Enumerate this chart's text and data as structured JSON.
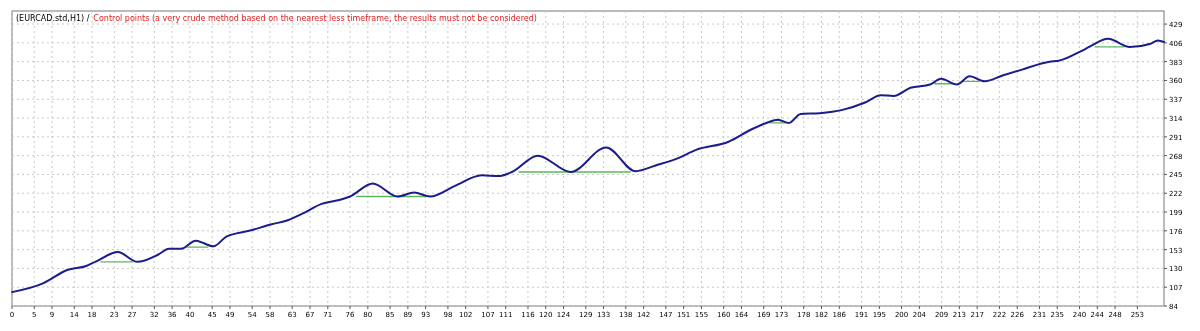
{
  "chart_data": {
    "type": "line",
    "title": "(EURCAD.std,H1) /",
    "subtitle": "Control points (a very crude method based on the nearest less timeframe, the results must not be considered)",
    "xlim": [
      0,
      259
    ],
    "xticks": [
      0,
      5,
      9,
      14,
      18,
      23,
      27,
      32,
      36,
      40,
      45,
      49,
      54,
      58,
      63,
      67,
      71,
      76,
      80,
      85,
      89,
      93,
      98,
      102,
      107,
      111,
      116,
      120,
      124,
      129,
      133,
      138,
      142,
      147,
      151,
      155,
      160,
      164,
      169,
      173,
      178,
      182,
      186,
      191,
      195,
      200,
      204,
      209,
      213,
      217,
      222,
      226,
      231,
      235,
      240,
      244,
      248,
      253
    ],
    "ylim": [
      84,
      445
    ],
    "yticks": [
      84,
      107,
      130,
      153,
      176,
      199,
      222,
      245,
      268,
      291,
      314,
      337,
      360,
      383,
      406,
      429
    ],
    "grid": true,
    "line_style": "solid",
    "marker": "none",
    "series": [
      {
        "color": "#5cb85c",
        "x": [
          20,
          27,
          27.5,
          39.5,
          44,
          44.5,
          77.5,
          93,
          93.5,
          114,
          139,
          139.5,
          170.5,
          174,
          174.5,
          207.5,
          211.5,
          212,
          213.5,
          217.5,
          218,
          243.5,
          250
        ],
        "values": [
          138,
          138,
          null,
          156,
          156,
          null,
          218,
          218,
          null,
          248,
          248,
          null,
          308,
          308,
          null,
          356,
          356,
          null,
          359,
          359,
          null,
          401,
          401
        ]
      },
      {
        "color": "#1c1c8c",
        "x": [
          0,
          7.1,
          12.4,
          16.7,
          18.7,
          23.8,
          28.2,
          32.9,
          35.3,
          38,
          41.3,
          45.3,
          48.2,
          53.3,
          58.4,
          62,
          65.3,
          69.6,
          73.8,
          76,
          81.1,
          86.7,
          90.4,
          94,
          99.6,
          105.6,
          109.3,
          112.4,
          118.2,
          125.6,
          133.6,
          140.2,
          144.7,
          149.8,
          153.8,
          161.1,
          166.2,
          169.6,
          172.2,
          174.7,
          177.3,
          181.6,
          186.7,
          191.8,
          195.3,
          198.2,
          202,
          206.4,
          208.9,
          212.4,
          215.3,
          218.7,
          222.7,
          226.9,
          233.3,
          235.3,
          240.4,
          242.2,
          246.4,
          251.3,
          256,
          257.6,
          259
        ],
        "values": [
          101,
          112,
          128,
          133,
          138,
          150,
          138,
          147,
          154,
          154,
          164,
          157,
          169,
          176,
          184,
          189,
          197,
          209,
          214,
          218,
          234,
          218,
          223,
          218,
          231,
          244,
          243,
          248,
          268,
          248,
          278,
          249,
          256,
          265,
          275,
          285,
          300,
          308,
          312,
          308,
          319,
          320,
          324,
          333,
          342,
          341,
          351,
          355,
          362,
          355,
          365,
          359,
          366,
          373,
          383,
          384,
          396,
          401,
          411,
          401,
          405,
          409,
          407
        ]
      }
    ]
  }
}
